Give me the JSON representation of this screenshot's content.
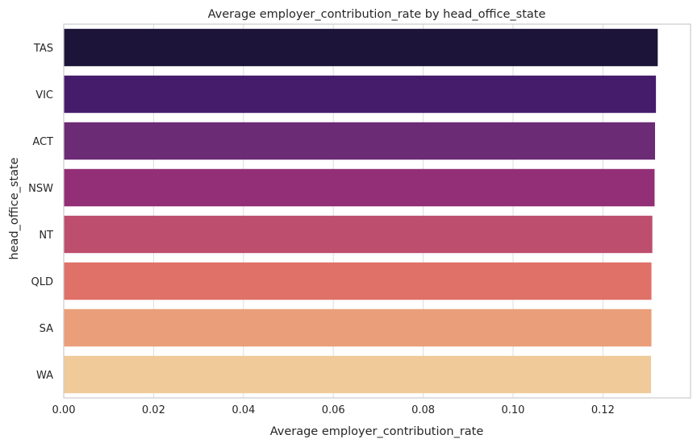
{
  "chart_data": {
    "type": "bar",
    "orientation": "horizontal",
    "title": "Average employer_contribution_rate by head_office_state",
    "xlabel": "Average employer_contribution_rate",
    "ylabel": "head_office_state",
    "categories": [
      "TAS",
      "VIC",
      "ACT",
      "NSW",
      "NT",
      "QLD",
      "SA",
      "WA"
    ],
    "values": [
      0.1322,
      0.1318,
      0.1316,
      0.1315,
      0.131,
      0.1308,
      0.1308,
      0.1307
    ],
    "xlim": [
      0,
      0.1395
    ],
    "xticks": [
      "0.00",
      "0.02",
      "0.04",
      "0.06",
      "0.08",
      "0.10",
      "0.12"
    ],
    "grid": "vertical",
    "legend": "none",
    "colors": [
      "#1c1539",
      "#451c6b",
      "#6c2b75",
      "#932f77",
      "#bd4e6e",
      "#e07168",
      "#ea9e79",
      "#f0ca98"
    ]
  }
}
